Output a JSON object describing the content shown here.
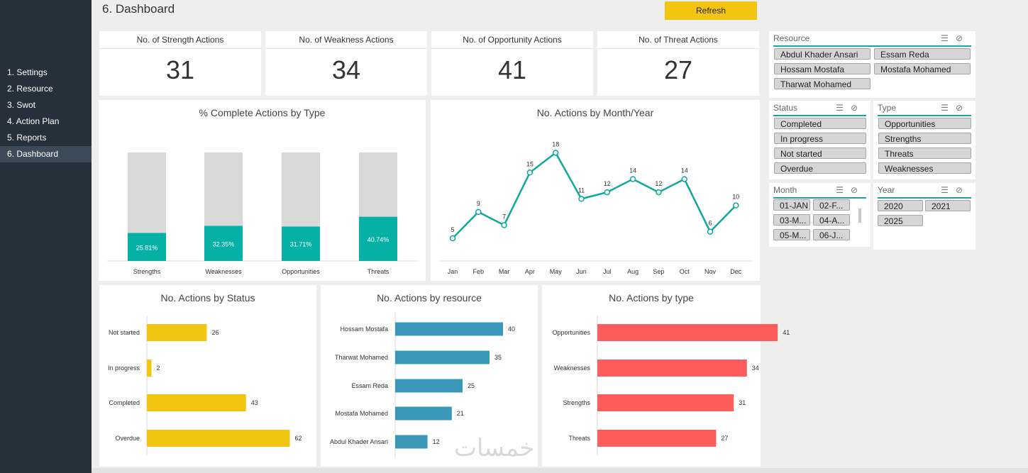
{
  "sidebar": {
    "items": [
      {
        "label": "1. Settings"
      },
      {
        "label": "2. Resource"
      },
      {
        "label": "3. Swot"
      },
      {
        "label": "4. Action Plan"
      },
      {
        "label": "5. Reports"
      },
      {
        "label": "6. Dashboard",
        "active": true
      }
    ]
  },
  "header": {
    "title": "6. Dashboard",
    "refresh_label": "Refresh"
  },
  "kpis": [
    {
      "title": "No. of Strength Actions",
      "value": "31"
    },
    {
      "title": "No. of Weakness Actions",
      "value": "34"
    },
    {
      "title": "No. of Opportunity Actions",
      "value": "41"
    },
    {
      "title": "No. of Threat Actions",
      "value": "27"
    }
  ],
  "slicers": {
    "resource": {
      "header": "Resource",
      "items": [
        "Abdul Khader Ansari",
        "Essam Reda",
        "Hossam Mostafa",
        "Mostafa Mohamed",
        "Tharwat Mohamed"
      ]
    },
    "status": {
      "header": "Status",
      "items": [
        "Completed",
        "In progress",
        "Not started",
        "Overdue"
      ]
    },
    "type": {
      "header": "Type",
      "items": [
        "Opportunities",
        "Strengths",
        "Threats",
        "Weaknesses"
      ]
    },
    "month": {
      "header": "Month",
      "items": [
        "01-JAN",
        "02-F...",
        "03-M...",
        "04-A...",
        "05-M...",
        "06-J..."
      ]
    },
    "year": {
      "header": "Year",
      "items": [
        "2020",
        "2021",
        "2025"
      ]
    }
  },
  "colors": {
    "teal": "#05b0a5",
    "gray_bar": "#d9d9d9",
    "yellow": "#f2c511",
    "blue": "#3a98b9",
    "red": "#fd5c5c",
    "line": "#0fa89c"
  },
  "chart_data": [
    {
      "type": "bar",
      "title": "% Complete Actions by Type",
      "categories": [
        "Strengths",
        "Weaknesses",
        "Opportunities",
        "Threats"
      ],
      "values": [
        25.81,
        32.35,
        31.71,
        40.74
      ],
      "labels": [
        "25.81%",
        "32.35%",
        "31.71%",
        "40.74%"
      ],
      "ylim": [
        0,
        100
      ],
      "stacked_remainder": true
    },
    {
      "type": "line",
      "title": "No. Actions by Month/Year",
      "categories": [
        "Jan",
        "Feb",
        "Mar",
        "Apr",
        "May",
        "Jun",
        "Jul",
        "Aug",
        "Sep",
        "Oct",
        "Nov",
        "Dec"
      ],
      "values": [
        5,
        9,
        7,
        15,
        18,
        11,
        12,
        14,
        12,
        14,
        6,
        10
      ]
    },
    {
      "type": "bar",
      "orientation": "horizontal",
      "title": "No. Actions by Status",
      "categories": [
        "Not started",
        "In progress",
        "Completed",
        "Overdue"
      ],
      "values": [
        26,
        2,
        43,
        62
      ]
    },
    {
      "type": "bar",
      "orientation": "horizontal",
      "title": "No. Actions by resource",
      "categories": [
        "Hossam Mostafa",
        "Tharwat Mohamed",
        "Essam Reda",
        "Mostafa Mohamed",
        "Abdul Khader Ansari"
      ],
      "values": [
        40,
        35,
        25,
        21,
        12
      ]
    },
    {
      "type": "bar",
      "orientation": "horizontal",
      "title": "No. Actions by type",
      "categories": [
        "Opportunities",
        "Weaknesses",
        "Strengths",
        "Threats"
      ],
      "values": [
        41,
        34,
        31,
        27
      ]
    }
  ],
  "watermark": "خمسات"
}
